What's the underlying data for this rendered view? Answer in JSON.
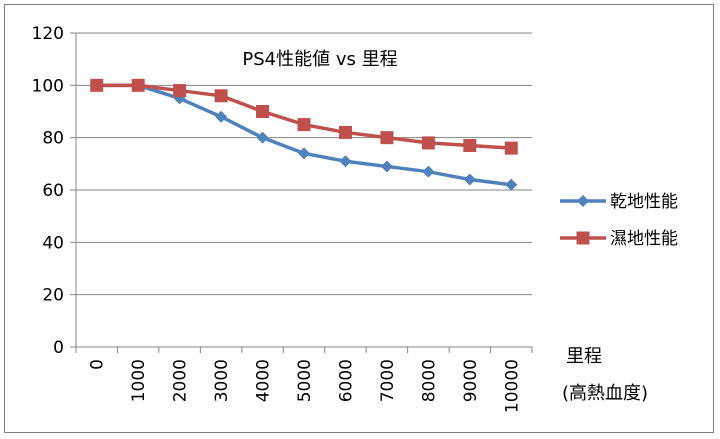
{
  "chart_data": {
    "type": "line",
    "title": "PS4性能値 vs 里程",
    "xlabel_line1": "里程",
    "xlabel_line2": "(高熱血度)",
    "ylabel": "",
    "x": [
      0,
      1000,
      2000,
      3000,
      4000,
      5000,
      6000,
      7000,
      8000,
      9000,
      10000
    ],
    "xticks": [
      "0",
      "1000",
      "2000",
      "3000",
      "4000",
      "5000",
      "6000",
      "7000",
      "8000",
      "9000",
      "10000"
    ],
    "ylim": [
      0,
      120
    ],
    "yticks": [
      0,
      20,
      40,
      60,
      80,
      100,
      120
    ],
    "grid": "horizontal",
    "legend": "right",
    "series": [
      {
        "name": "乾地性能",
        "color": "#4f81bd",
        "marker": "diamond",
        "values": [
          100,
          100,
          95,
          88,
          80,
          74,
          71,
          69,
          67,
          64,
          62
        ]
      },
      {
        "name": "濕地性能",
        "color": "#c0504d",
        "marker": "square",
        "values": [
          100,
          100,
          98,
          96,
          90,
          85,
          82,
          80,
          78,
          77,
          76
        ]
      }
    ]
  }
}
